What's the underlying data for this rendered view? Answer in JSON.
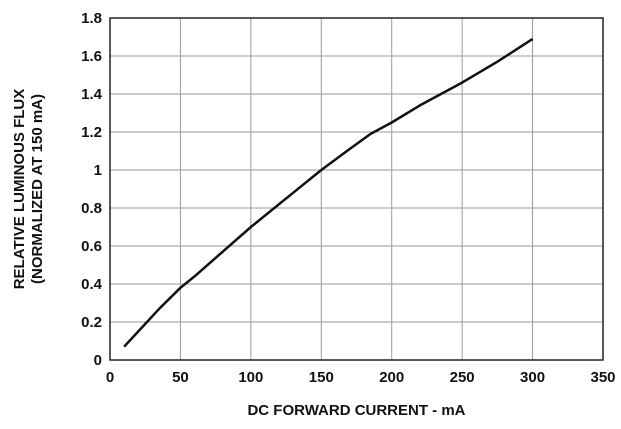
{
  "chart_data": {
    "type": "line",
    "title": "",
    "xlabel": "DC FORWARD CURRENT - mA",
    "ylabel_line1": "RELATIVE LUMINOUS FLUX",
    "ylabel_line2": "(NORMALIZED AT 150 mA)",
    "xlim": [
      0,
      350
    ],
    "ylim": [
      0,
      1.8
    ],
    "x_ticks": [
      "0",
      "50",
      "100",
      "150",
      "200",
      "250",
      "300",
      "350"
    ],
    "y_ticks": [
      "0",
      "0.2",
      "0.4",
      "0.6",
      "0.8",
      "1",
      "1.2",
      "1.4",
      "1.6",
      "1.8"
    ],
    "grid": true,
    "series": [
      {
        "x": [
          10,
          20,
          35,
          50,
          60,
          80,
          100,
          115,
          130,
          150,
          170,
          185,
          200,
          220,
          250,
          275,
          300
        ],
        "y": [
          0.07,
          0.15,
          0.27,
          0.38,
          0.44,
          0.57,
          0.7,
          0.79,
          0.88,
          1.0,
          1.11,
          1.19,
          1.25,
          1.34,
          1.46,
          1.57,
          1.69
        ]
      }
    ]
  }
}
